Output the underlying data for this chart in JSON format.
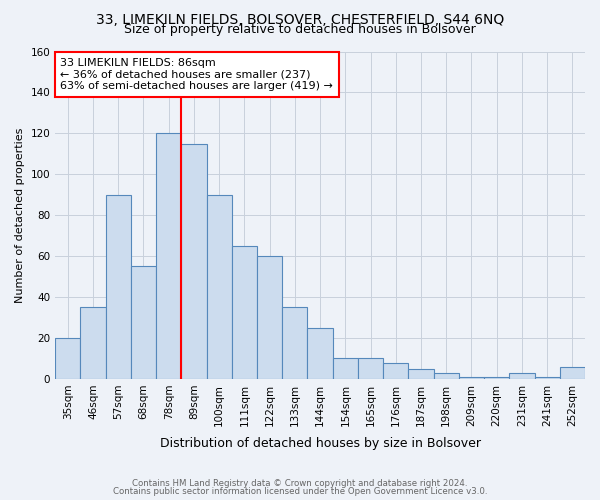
{
  "title1": "33, LIMEKILN FIELDS, BOLSOVER, CHESTERFIELD, S44 6NQ",
  "title2": "Size of property relative to detached houses in Bolsover",
  "xlabel": "Distribution of detached houses by size in Bolsover",
  "ylabel": "Number of detached properties",
  "categories": [
    "35sqm",
    "46sqm",
    "57sqm",
    "68sqm",
    "78sqm",
    "89sqm",
    "100sqm",
    "111sqm",
    "122sqm",
    "133sqm",
    "144sqm",
    "154sqm",
    "165sqm",
    "176sqm",
    "187sqm",
    "198sqm",
    "209sqm",
    "220sqm",
    "231sqm",
    "241sqm",
    "252sqm"
  ],
  "values": [
    20,
    35,
    90,
    55,
    120,
    115,
    90,
    65,
    60,
    35,
    25,
    10,
    10,
    8,
    5,
    3,
    1,
    1,
    3,
    1,
    6
  ],
  "bar_color": "#ccdcee",
  "bar_edge_color": "#5588bb",
  "red_line_x": 4.5,
  "annotation_line1": "33 LIMEKILN FIELDS: 86sqm",
  "annotation_line2": "← 36% of detached houses are smaller (237)",
  "annotation_line3": "63% of semi-detached houses are larger (419) →",
  "ylim": [
    0,
    160
  ],
  "yticks": [
    0,
    20,
    40,
    60,
    80,
    100,
    120,
    140,
    160
  ],
  "footnote1": "Contains HM Land Registry data © Crown copyright and database right 2024.",
  "footnote2": "Contains public sector information licensed under the Open Government Licence v3.0.",
  "background_color": "#eef2f8",
  "plot_bg_color": "#eef2f8",
  "grid_color": "#c8d0dc",
  "title_fontsize": 10,
  "subtitle_fontsize": 9,
  "ylabel_fontsize": 8,
  "xlabel_fontsize": 9,
  "tick_fontsize": 7.5,
  "annotation_fontsize": 8
}
